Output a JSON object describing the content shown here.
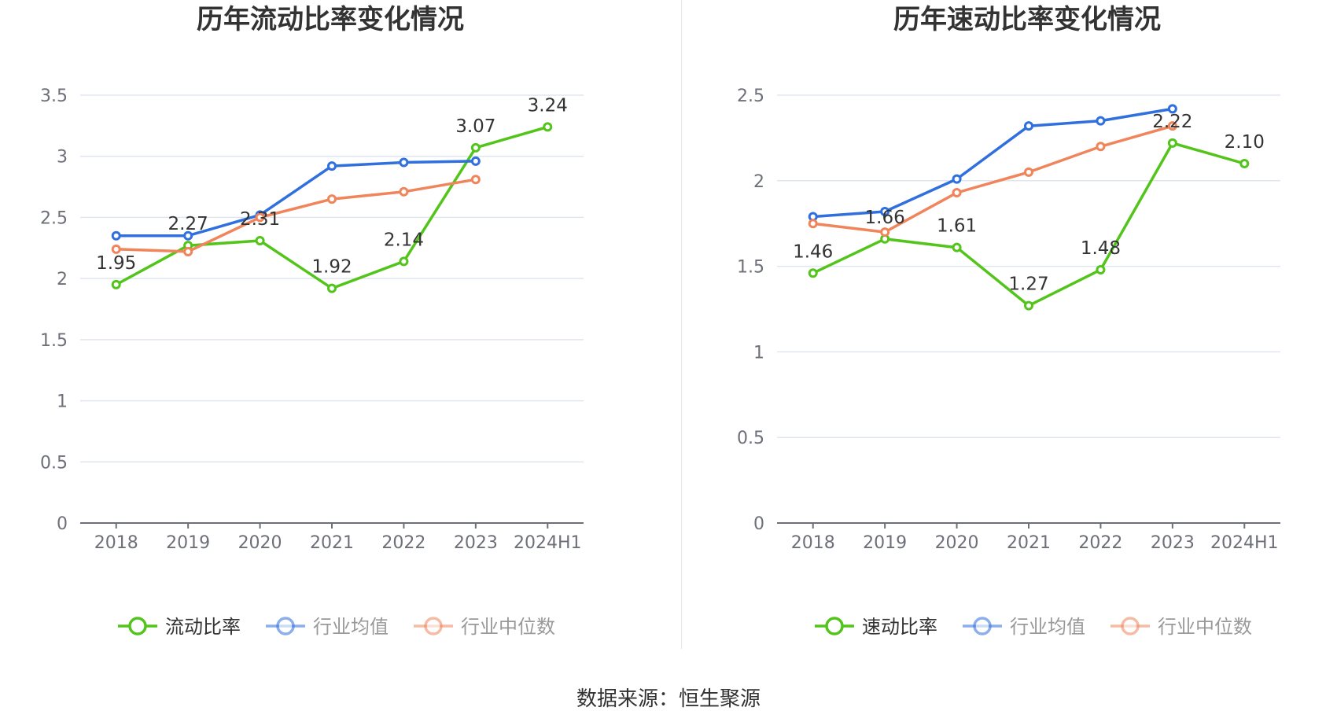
{
  "source": "数据来源：恒生聚源",
  "colors": {
    "main": "#52c41a",
    "avg": "#2f6fde",
    "median": "#f0845a"
  },
  "chart_data": [
    {
      "type": "line",
      "title": "历年流动比率变化情况",
      "categories": [
        "2018",
        "2019",
        "2020",
        "2021",
        "2022",
        "2023",
        "2024H1"
      ],
      "y_ticks": [
        "0",
        "0.5",
        "1",
        "1.5",
        "2",
        "2.5",
        "3",
        "3.5"
      ],
      "ylim": [
        0,
        3.5
      ],
      "series": [
        {
          "key": "main",
          "name": "流动比率",
          "values": [
            1.95,
            2.27,
            2.31,
            1.92,
            2.14,
            3.07,
            3.24
          ],
          "labels": [
            "1.95",
            "2.27",
            "2.31",
            "1.92",
            "2.14",
            "3.07",
            "3.24"
          ]
        },
        {
          "key": "avg",
          "name": "行业均值",
          "values": [
            2.35,
            2.35,
            2.52,
            2.92,
            2.95,
            2.96,
            null
          ]
        },
        {
          "key": "median",
          "name": "行业中位数",
          "values": [
            2.24,
            2.22,
            2.5,
            2.65,
            2.71,
            2.81,
            null
          ]
        }
      ]
    },
    {
      "type": "line",
      "title": "历年速动比率变化情况",
      "categories": [
        "2018",
        "2019",
        "2020",
        "2021",
        "2022",
        "2023",
        "2024H1"
      ],
      "y_ticks": [
        "0",
        "0.5",
        "1",
        "1.5",
        "2",
        "2.5"
      ],
      "ylim": [
        0,
        2.5
      ],
      "series": [
        {
          "key": "main",
          "name": "速动比率",
          "values": [
            1.46,
            1.66,
            1.61,
            1.27,
            1.48,
            2.22,
            2.1
          ],
          "labels": [
            "1.46",
            "1.66",
            "1.61",
            "1.27",
            "1.48",
            "2.22",
            "2.10"
          ]
        },
        {
          "key": "avg",
          "name": "行业均值",
          "values": [
            1.79,
            1.82,
            2.01,
            2.32,
            2.35,
            2.42,
            null
          ]
        },
        {
          "key": "median",
          "name": "行业中位数",
          "values": [
            1.75,
            1.7,
            1.93,
            2.05,
            2.2,
            2.32,
            null
          ]
        }
      ]
    }
  ]
}
